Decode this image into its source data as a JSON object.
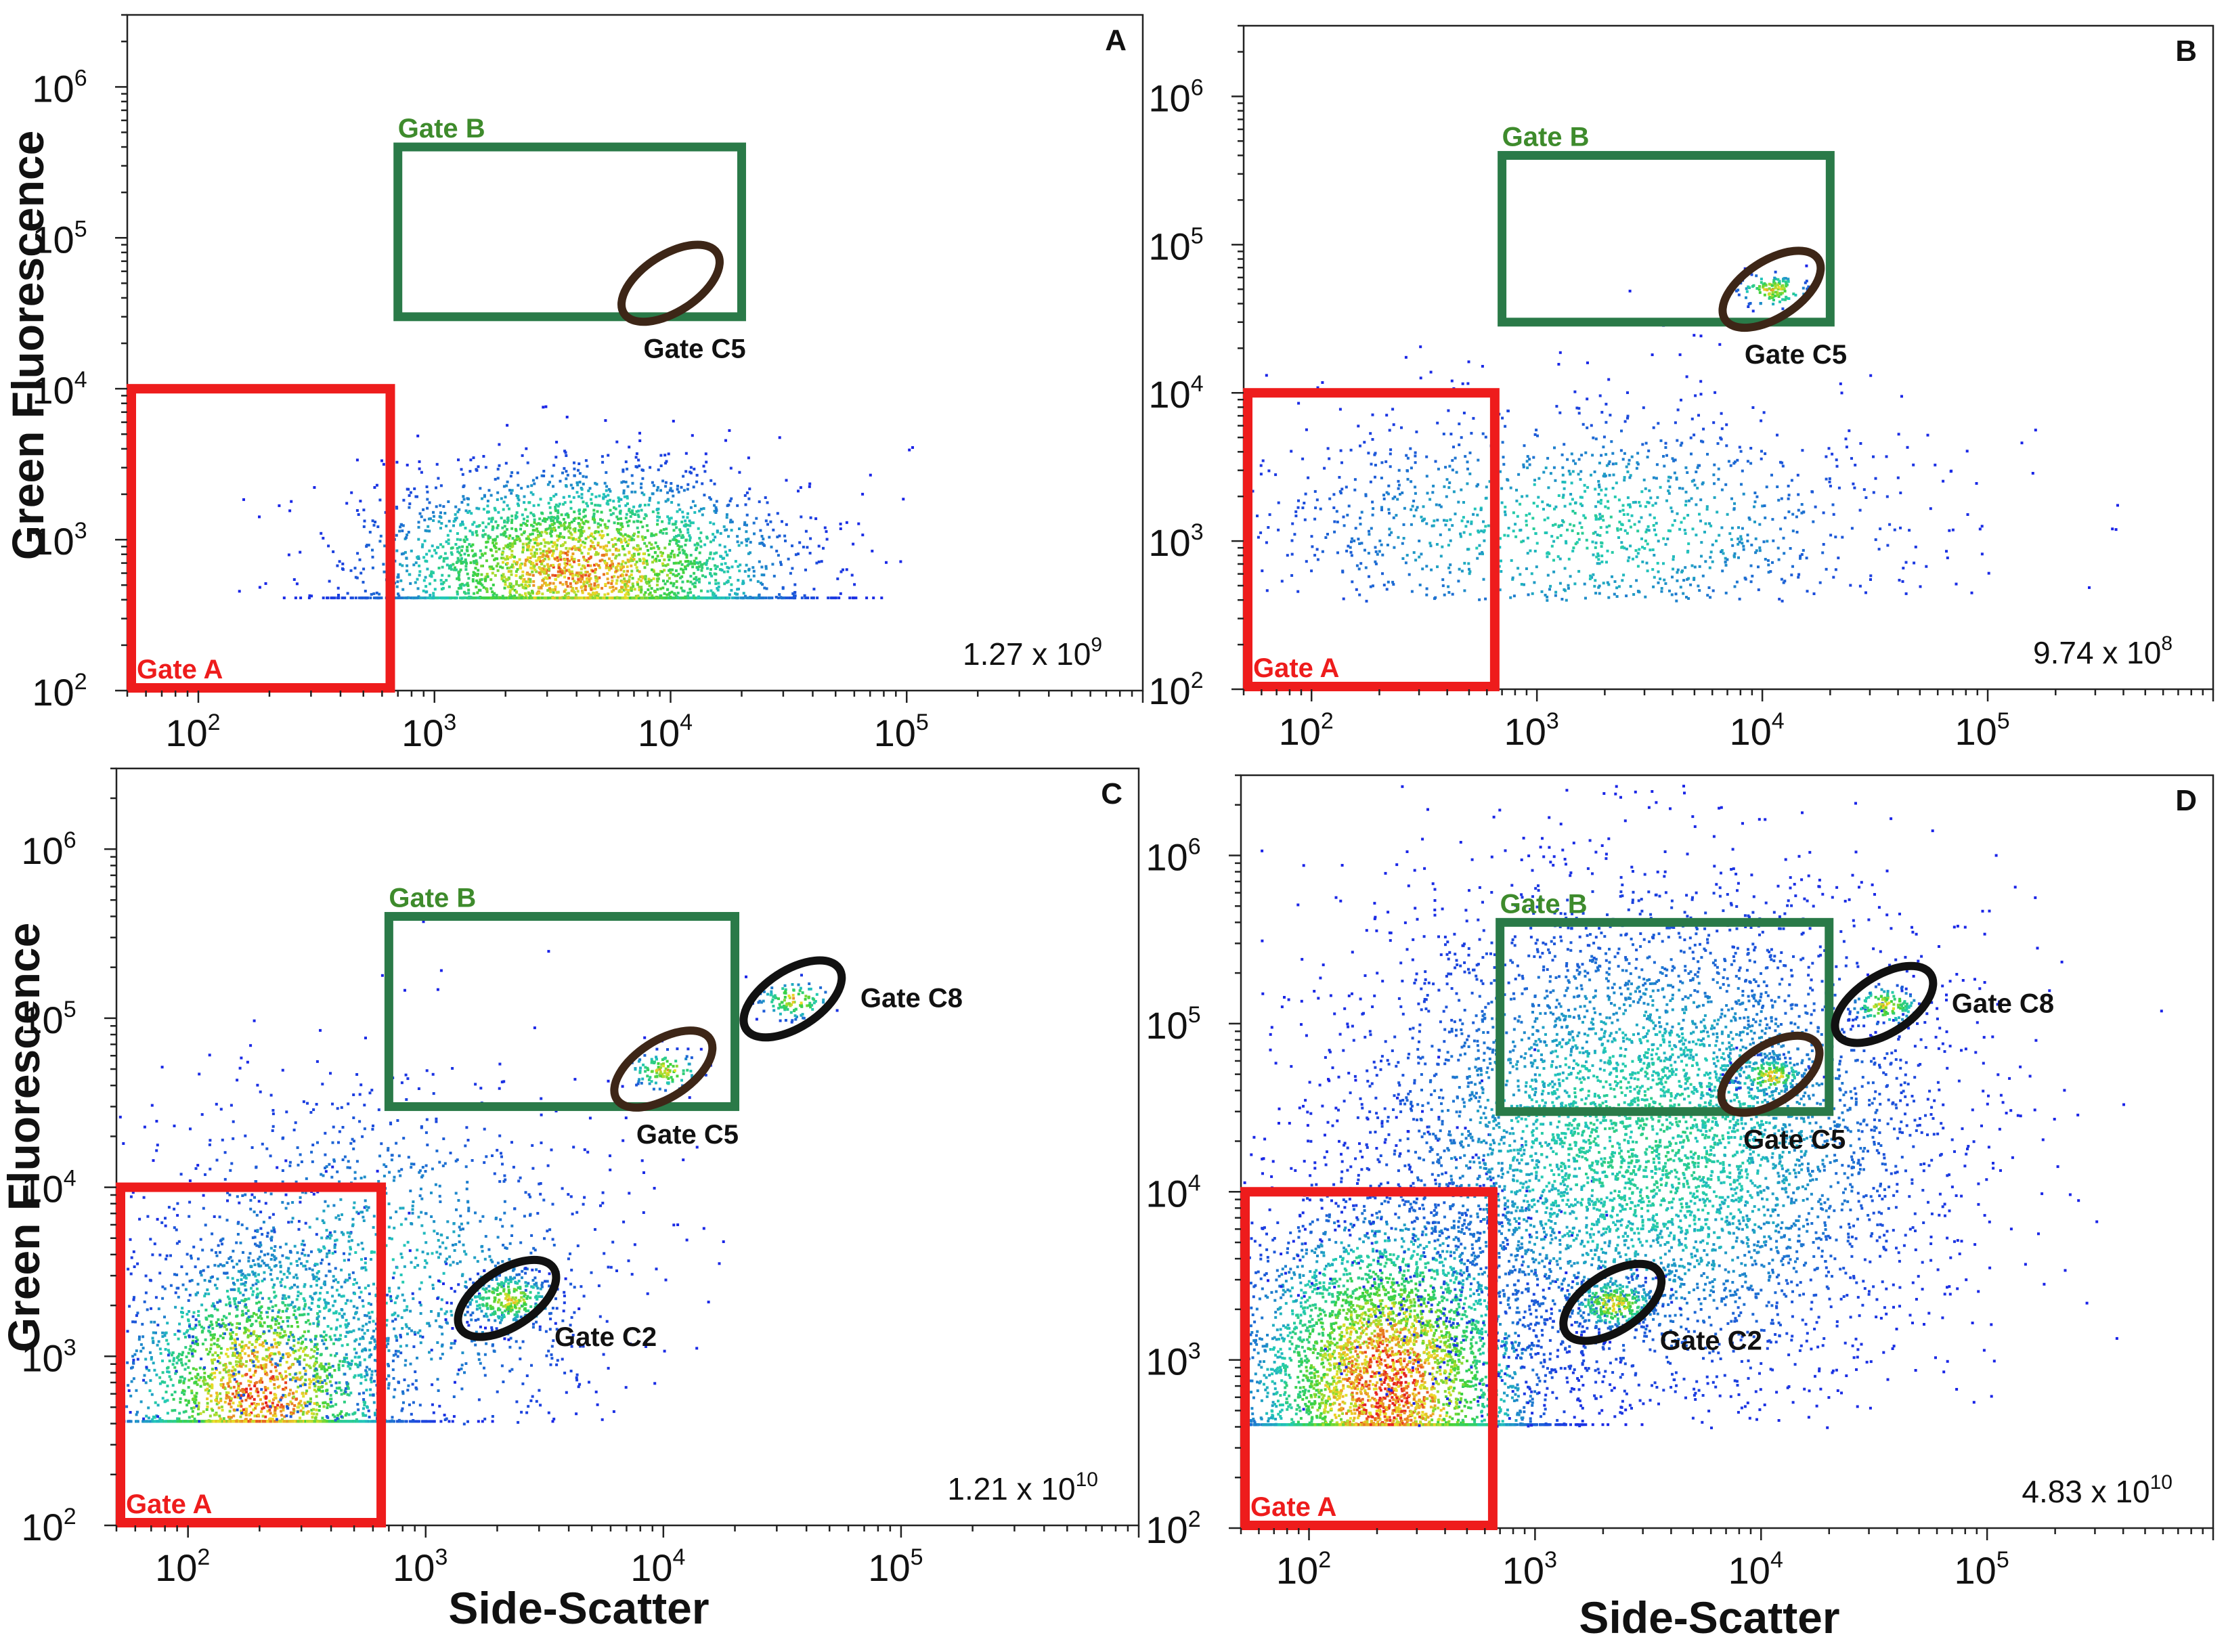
{
  "figure": {
    "y_axis_title": "Green Fluorescence",
    "x_axis_title": "Side-Scatter"
  },
  "colors": {
    "gate_a": "#ee1c1c",
    "gate_b": "#2a7a48",
    "gate_b_label": "#3e8b2c",
    "gate_c": "#111111",
    "gate_c_brown": "#3d2617",
    "density_low": "#1a22e8",
    "density_mid": "#22c9b8",
    "density_high": "#e62020"
  },
  "chart_data": [
    {
      "type": "scatter",
      "panel": "A",
      "title": "A",
      "xlabel": "",
      "ylabel": "Green Fluorescence",
      "x_scale": "log",
      "y_scale": "log",
      "xlim": [
        50,
        1000000
      ],
      "ylim": [
        100,
        3000000
      ],
      "x_ticks": [
        "10",
        "10",
        "10",
        "10"
      ],
      "x_tick_exps": [
        "2",
        "3",
        "4",
        "5"
      ],
      "y_ticks": [
        "10",
        "10",
        "10",
        "10",
        "10"
      ],
      "y_tick_exps": [
        "2",
        "3",
        "4",
        "5",
        "6"
      ],
      "event_count": "1.27 x 10",
      "event_count_exp": "9",
      "gates": {
        "gate_a": {
          "label": "Gate A",
          "x": [
            50,
            650
          ],
          "y": [
            100,
            10000
          ]
        },
        "gate_b": {
          "label": "Gate B",
          "x": [
            700,
            20000
          ],
          "y": [
            30000,
            400000
          ]
        },
        "ellipses": [
          {
            "label": "Gate C5",
            "cx": 10000,
            "cy": 50000,
            "color": "brown"
          }
        ]
      },
      "populations": [
        {
          "name": "main cloud",
          "cx": 4000,
          "cy": 650,
          "sx": 0.45,
          "sy": 0.33,
          "n": 3200,
          "peak": 0.9
        }
      ]
    },
    {
      "type": "scatter",
      "panel": "B",
      "title": "B",
      "xlabel": "",
      "ylabel": "",
      "x_scale": "log",
      "y_scale": "log",
      "xlim": [
        50,
        1000000
      ],
      "ylim": [
        100,
        3000000
      ],
      "x_ticks": [
        "10",
        "10",
        "10",
        "10"
      ],
      "x_tick_exps": [
        "2",
        "3",
        "4",
        "5"
      ],
      "y_ticks": [
        "10",
        "10",
        "10",
        "10",
        "10"
      ],
      "y_tick_exps": [
        "2",
        "3",
        "4",
        "5",
        "6"
      ],
      "event_count": "9.74 x 10",
      "event_count_exp": "8",
      "gates": {
        "gate_a": {
          "label": "Gate A",
          "x": [
            50,
            650
          ],
          "y": [
            100,
            10000
          ]
        },
        "gate_b": {
          "label": "Gate B",
          "x": [
            700,
            20000
          ],
          "y": [
            30000,
            400000
          ]
        },
        "ellipses": [
          {
            "label": "Gate C5",
            "cx": 11000,
            "cy": 50000,
            "color": "brown"
          }
        ]
      },
      "populations": [
        {
          "name": "sparse cloud",
          "cx": 1500,
          "cy": 1200,
          "sx": 0.75,
          "sy": 0.45,
          "n": 1500,
          "peak": 0.35
        },
        {
          "name": "C5 beads",
          "cx": 11000,
          "cy": 50000,
          "sx": 0.08,
          "sy": 0.06,
          "n": 120,
          "peak": 0.8
        }
      ]
    },
    {
      "type": "scatter",
      "panel": "C",
      "title": "C",
      "xlabel": "Side-Scatter",
      "ylabel": "Green Fluorescence",
      "x_scale": "log",
      "y_scale": "log",
      "xlim": [
        50,
        1000000
      ],
      "ylim": [
        100,
        3000000
      ],
      "x_ticks": [
        "10",
        "10",
        "10",
        "10"
      ],
      "x_tick_exps": [
        "2",
        "3",
        "4",
        "5"
      ],
      "y_ticks": [
        "10",
        "10",
        "10",
        "10",
        "10"
      ],
      "y_tick_exps": [
        "2",
        "3",
        "4",
        "5",
        "6"
      ],
      "event_count": "1.21 x 10",
      "event_count_exp": "10",
      "gates": {
        "gate_a": {
          "label": "Gate A",
          "x": [
            50,
            650
          ],
          "y": [
            100,
            10000
          ]
        },
        "gate_b": {
          "label": "Gate B",
          "x": [
            700,
            20000
          ],
          "y": [
            30000,
            400000
          ]
        },
        "ellipses": [
          {
            "label": "Gate C5",
            "cx": 10000,
            "cy": 50000,
            "color": "brown"
          },
          {
            "label": "Gate C8",
            "cx": 35000,
            "cy": 130000,
            "color": "black"
          },
          {
            "label": "Gate C2",
            "cx": 2200,
            "cy": 2200,
            "color": "black"
          }
        ]
      },
      "populations": [
        {
          "name": "small particles",
          "cx": 200,
          "cy": 600,
          "sx": 0.3,
          "sy": 0.45,
          "n": 2600,
          "peak": 0.95
        },
        {
          "name": "scatter",
          "cx": 600,
          "cy": 3000,
          "sx": 0.55,
          "sy": 0.6,
          "n": 1400,
          "peak": 0.3
        },
        {
          "name": "C2 beads",
          "cx": 2200,
          "cy": 2200,
          "sx": 0.1,
          "sy": 0.08,
          "n": 300,
          "peak": 0.8
        },
        {
          "name": "C5 beads",
          "cx": 10000,
          "cy": 50000,
          "sx": 0.08,
          "sy": 0.06,
          "n": 120,
          "peak": 0.8
        },
        {
          "name": "C8 beads",
          "cx": 35000,
          "cy": 130000,
          "sx": 0.08,
          "sy": 0.06,
          "n": 120,
          "peak": 0.8
        }
      ]
    },
    {
      "type": "scatter",
      "panel": "D",
      "title": "D",
      "xlabel": "Side-Scatter",
      "ylabel": "",
      "x_scale": "log",
      "y_scale": "log",
      "xlim": [
        50,
        1000000
      ],
      "ylim": [
        100,
        3000000
      ],
      "x_ticks": [
        "10",
        "10",
        "10",
        "10"
      ],
      "x_tick_exps": [
        "2",
        "3",
        "4",
        "5"
      ],
      "y_ticks": [
        "10",
        "10",
        "10",
        "10",
        "10"
      ],
      "y_tick_exps": [
        "2",
        "3",
        "4",
        "5",
        "6"
      ],
      "event_count": "4.83 x 10",
      "event_count_exp": "10",
      "gates": {
        "gate_a": {
          "label": "Gate A",
          "x": [
            50,
            650
          ],
          "y": [
            100,
            10000
          ]
        },
        "gate_b": {
          "label": "Gate B",
          "x": [
            700,
            20000
          ],
          "y": [
            30000,
            400000
          ]
        },
        "ellipses": [
          {
            "label": "Gate C5",
            "cx": 11000,
            "cy": 50000,
            "color": "brown"
          },
          {
            "label": "Gate C8",
            "cx": 35000,
            "cy": 130000,
            "color": "black"
          },
          {
            "label": "Gate C2",
            "cx": 2200,
            "cy": 2200,
            "color": "black"
          }
        ]
      },
      "populations": [
        {
          "name": "small particles",
          "cx": 220,
          "cy": 700,
          "sx": 0.33,
          "sy": 0.55,
          "n": 5000,
          "peak": 1.0
        },
        {
          "name": "broad cloud",
          "cx": 3000,
          "cy": 20000,
          "sx": 0.65,
          "sy": 0.75,
          "n": 6000,
          "peak": 0.4
        },
        {
          "name": "C2 beads",
          "cx": 2200,
          "cy": 2200,
          "sx": 0.1,
          "sy": 0.08,
          "n": 300,
          "peak": 0.8
        },
        {
          "name": "C5 beads",
          "cx": 11000,
          "cy": 50000,
          "sx": 0.08,
          "sy": 0.06,
          "n": 150,
          "peak": 0.8
        },
        {
          "name": "C8 beads",
          "cx": 35000,
          "cy": 130000,
          "sx": 0.08,
          "sy": 0.06,
          "n": 150,
          "peak": 0.8
        }
      ]
    }
  ]
}
